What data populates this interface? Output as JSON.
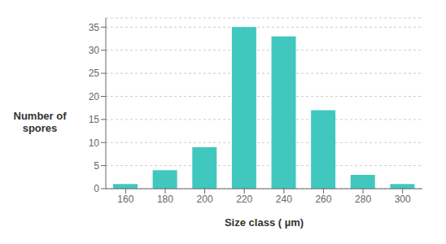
{
  "chart_data": {
    "type": "bar",
    "categories": [
      160,
      180,
      200,
      220,
      240,
      260,
      280,
      300
    ],
    "values": [
      1,
      4,
      9,
      35,
      33,
      17,
      3,
      1
    ],
    "color": "#40C8BE",
    "xlabel": "Size class ( µm)",
    "ylabel": "Number of\nspores",
    "ylim": [
      0,
      37
    ],
    "yticks": [
      0,
      5,
      10,
      15,
      20,
      25,
      30,
      35
    ],
    "grid": true
  }
}
